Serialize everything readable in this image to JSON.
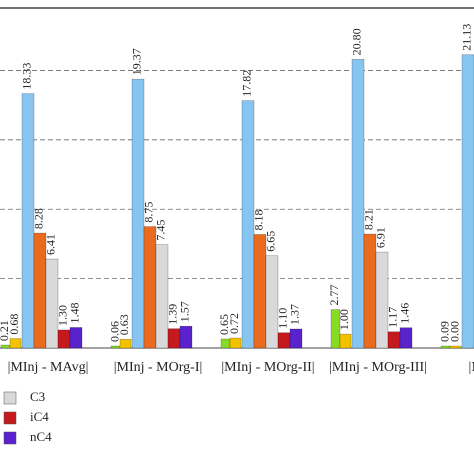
{
  "chart_data": {
    "type": "bar",
    "categories": [
      "|MInj - MAvg|",
      "|MInj - MOrg-I|",
      "|MInj - MOrg-II|",
      "|MInj - MOrg-III|",
      "|MInj - "
    ],
    "series": [
      {
        "color": "#86dc24",
        "values": [
          0.21,
          0.06,
          0.65,
          2.77,
          0.09
        ],
        "value_labels": [
          "0.21",
          "0.06",
          "0.65",
          "2.77",
          "0.09"
        ]
      },
      {
        "color": "#f2c200",
        "values": [
          0.68,
          0.63,
          0.72,
          1.0,
          0.0
        ],
        "value_labels": [
          "0.68",
          "0.63",
          "0.72",
          "1.00",
          "0.00"
        ]
      },
      {
        "color": "#86c4f2",
        "values": [
          18.33,
          19.37,
          17.82,
          20.8,
          21.13
        ],
        "value_labels": [
          "18.33",
          "19.37",
          "17.82",
          "20.80",
          "21.13"
        ]
      },
      {
        "color": "#ea6a1e",
        "values": [
          8.28,
          8.75,
          8.18,
          8.21,
          null
        ],
        "value_labels": [
          "8.28",
          "8.75",
          "8.18",
          "8.21",
          null
        ]
      },
      {
        "name": "C3",
        "color": "#d9d9d9",
        "values": [
          6.41,
          7.45,
          6.65,
          6.91,
          null
        ],
        "value_labels": [
          "6.41",
          "7.45",
          "6.65",
          "6.91",
          null
        ]
      },
      {
        "name": "iC4",
        "color": "#c41a1e",
        "values": [
          1.3,
          1.39,
          1.1,
          1.17,
          null
        ],
        "value_labels": [
          "1.30",
          "1.39",
          "1.10",
          "1.17",
          null
        ]
      },
      {
        "name": "nC4",
        "color": "#5a22cc",
        "values": [
          1.48,
          1.57,
          1.37,
          1.46,
          null
        ],
        "value_labels": [
          "1.48",
          "1.57",
          "1.37",
          "1.46",
          null
        ]
      }
    ],
    "ylim": [
      0,
      24.5
    ],
    "yticks": [
      0,
      5,
      10,
      15,
      20
    ],
    "grid": true
  }
}
